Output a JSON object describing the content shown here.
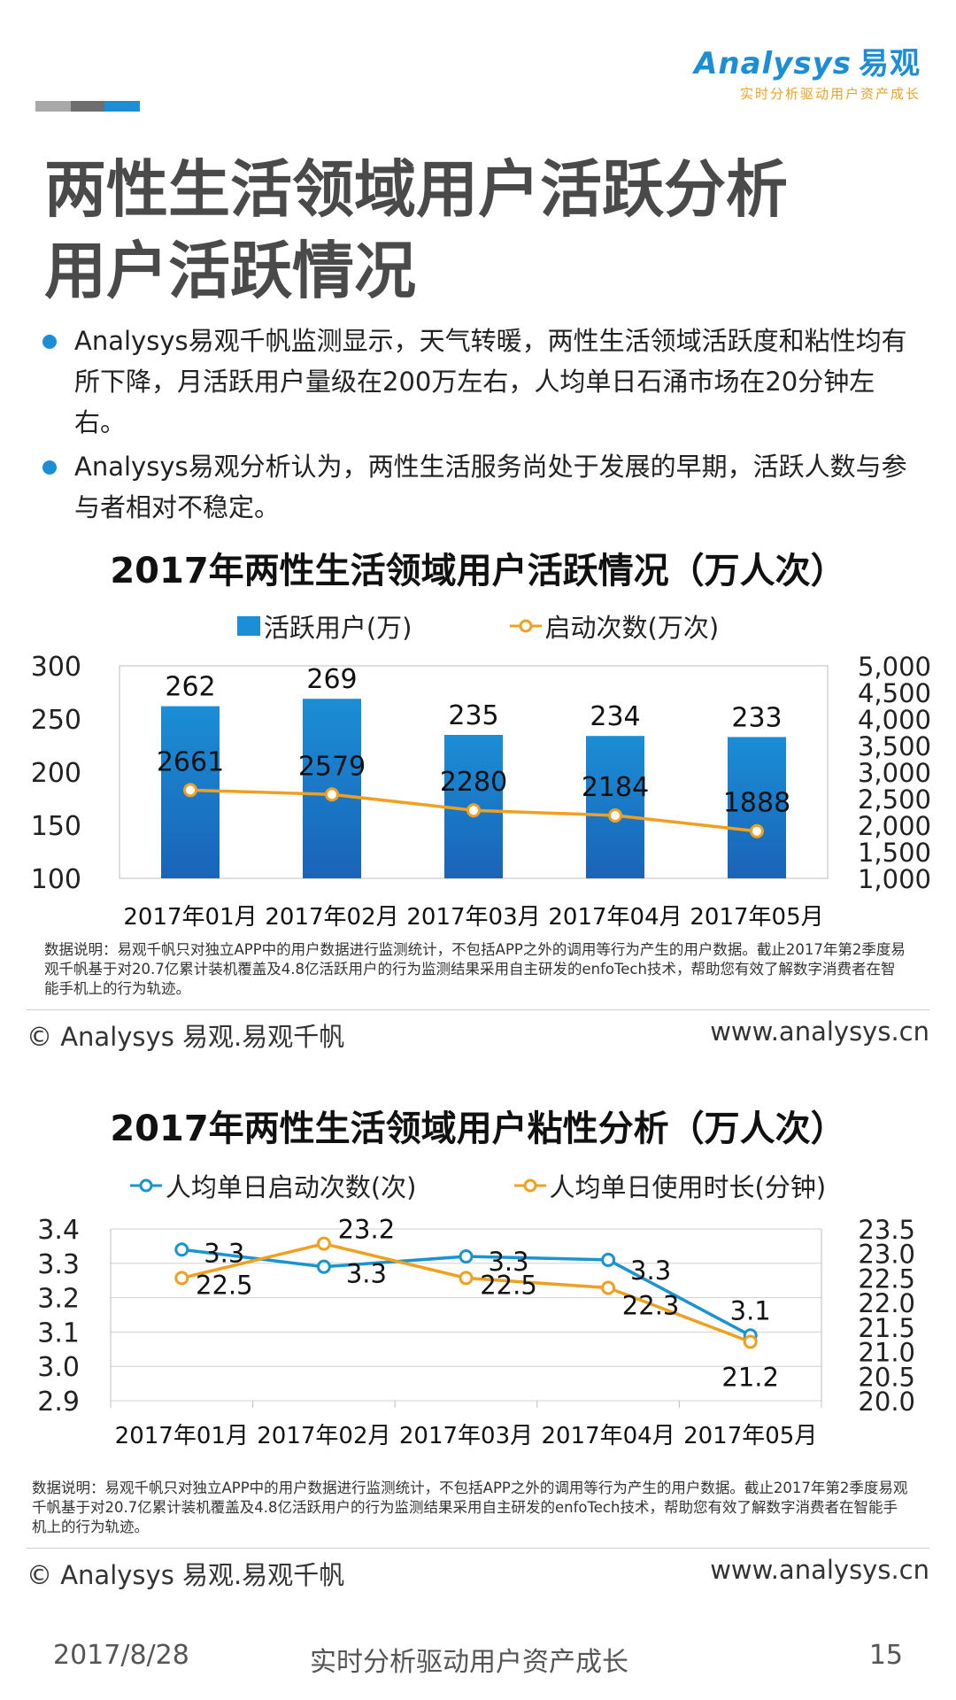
{
  "brand": {
    "name": "Analysys",
    "cn": "易观",
    "slogan": "实时分析驱动用户资产成长"
  },
  "colors": {
    "bar": "#1b8ed6",
    "bar_dark": "#1a63b8",
    "orange": "#f0a020",
    "blue_line": "#1b93d0",
    "accent1": "#9e9e9e",
    "accent2": "#6e6e6e",
    "accent3": "#1b8ed6"
  },
  "title": {
    "line1": "两性生活领域用户活跃分析",
    "line2": "用户活跃情况"
  },
  "bullets": [
    "Analysys易观千帆监测显示，天气转暖，两性生活领域活跃度和粘性均有所下降，月活跃用户量级在200万左右，人均单日石涌市场在20分钟左右。",
    "Analysys易观分析认为，两性生活服务尚处于发展的早期，活跃人数与参与者相对不稳定。"
  ],
  "chart1": {
    "title": "2017年两性生活领域用户活跃情况（万人次）",
    "legend_bar": "活跃用户(万)",
    "legend_line": "启动次数(万次)",
    "note": "数据说明：易观千帆只对独立APP中的用户数据进行监测统计，不包括APP之外的调用等行为产生的用户数据。截止2017年第2季度易观千帆基于对20.7亿累计装机覆盖及4.8亿活跃用户的行为监测结果采用自主研发的enfoTech技术，帮助您有效了解数字消费者在智能手机上的行为轨迹。",
    "copyright": "© Analysys 易观.易观千帆",
    "website": "www.analysys.cn"
  },
  "chart2": {
    "title": "2017年两性生活领域用户粘性分析（万人次）",
    "legend_a": "人均单日启动次数(次)",
    "legend_b": "人均单日使用时长(分钟)",
    "note": "数据说明：易观千帆只对独立APP中的用户数据进行监测统计，不包括APP之外的调用等行为产生的用户数据。截止2017年第2季度易观千帆基于对20.7亿累计装机覆盖及4.8亿活跃用户的行为监测结果采用自主研发的enfoTech技术，帮助您有效了解数字消费者在智能手机上的行为轨迹。",
    "copyright": "© Analysys 易观.易观千帆",
    "website": "www.analysys.cn"
  },
  "footer": {
    "date": "2017/8/28",
    "slogan": "实时分析驱动用户资产成长",
    "page": "15"
  },
  "chart_data": [
    {
      "type": "bar",
      "categories": [
        "2017年01月",
        "2017年02月",
        "2017年03月",
        "2017年04月",
        "2017年05月"
      ],
      "series": [
        {
          "name": "活跃用户(万)",
          "type": "bar",
          "axis": "left",
          "values": [
            262,
            269,
            235,
            234,
            233
          ]
        },
        {
          "name": "启动次数(万次)",
          "type": "line",
          "axis": "right",
          "values": [
            2661,
            2579,
            2280,
            2184,
            1888
          ]
        }
      ],
      "ylim_left": [
        100,
        300
      ],
      "yticks_left": [
        "300",
        "250",
        "200",
        "150",
        "100"
      ],
      "ylim_right": [
        1000,
        5000
      ],
      "yticks_right": [
        "5,000",
        "4,500",
        "4,000",
        "3,500",
        "3,000",
        "2,500",
        "2,000",
        "1,500",
        "1,000"
      ],
      "grid": false,
      "legend": "top"
    },
    {
      "type": "line",
      "categories": [
        "2017年01月",
        "2017年02月",
        "2017年03月",
        "2017年04月",
        "2017年05月"
      ],
      "series": [
        {
          "name": "人均单日启动次数(次)",
          "axis": "left",
          "values": [
            3.3,
            3.3,
            3.3,
            3.3,
            3.1
          ],
          "display_values": [
            3.34,
            3.29,
            3.32,
            3.31,
            3.09
          ]
        },
        {
          "name": "人均单日使用时长(分钟)",
          "axis": "right",
          "values": [
            22.5,
            23.2,
            22.5,
            22.3,
            21.2
          ]
        }
      ],
      "ylim_left": [
        2.9,
        3.4
      ],
      "yticks_left": [
        "3.4",
        "3.3",
        "3.2",
        "3.1",
        "3.0",
        "2.9"
      ],
      "ylim_right": [
        20.0,
        23.5
      ],
      "yticks_right": [
        "23.5",
        "23.0",
        "22.5",
        "22.0",
        "21.5",
        "21.0",
        "20.5",
        "20.0"
      ],
      "grid": true,
      "legend": "top"
    }
  ]
}
